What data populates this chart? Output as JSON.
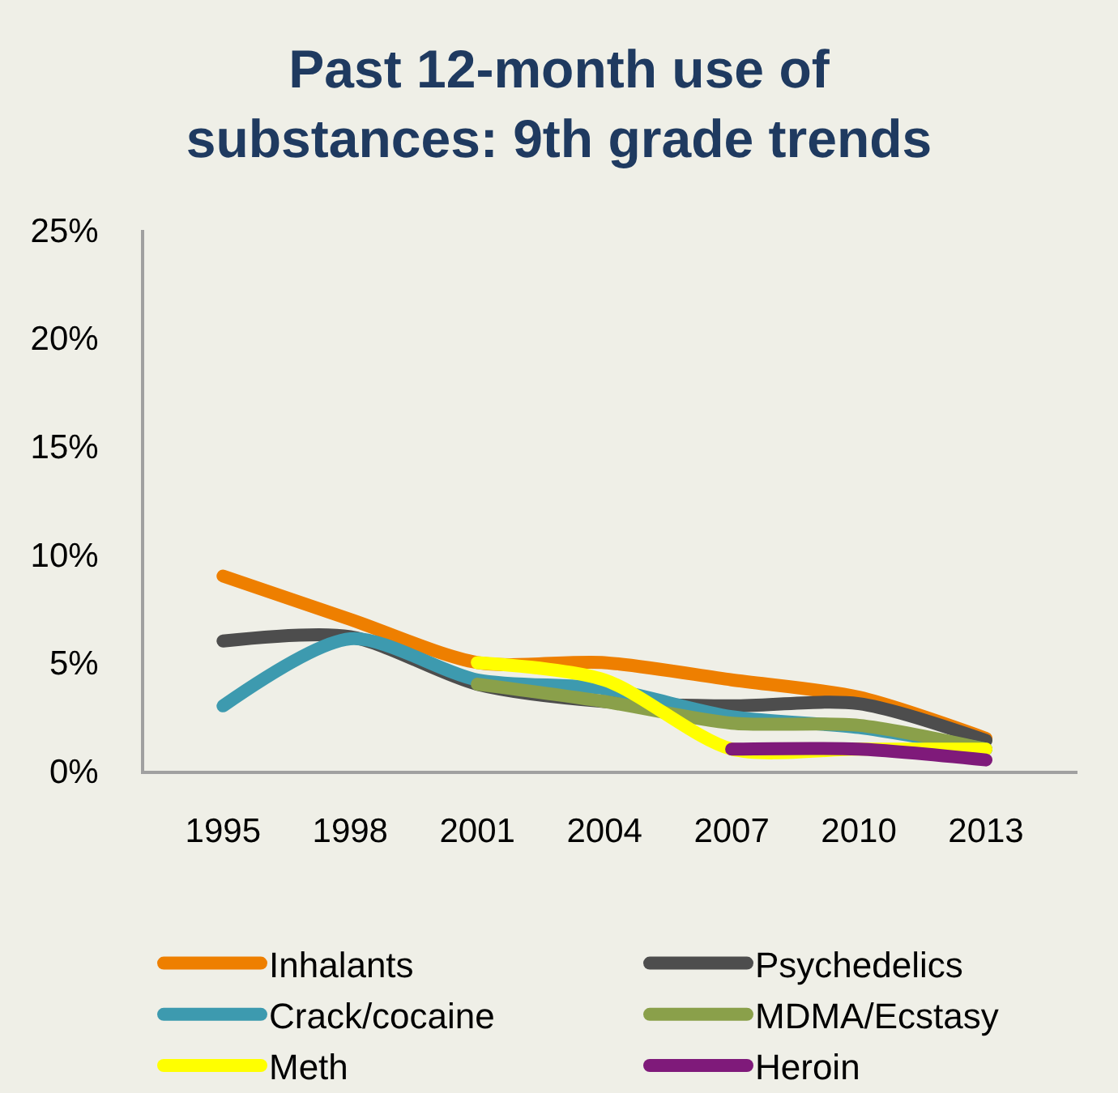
{
  "chart_data": {
    "type": "line",
    "title": "Past 12-month use of\nsubstances: 9th grade trends",
    "categories": [
      "1995",
      "1998",
      "2001",
      "2004",
      "2007",
      "2010",
      "2013"
    ],
    "series": [
      {
        "name": "Inhalants",
        "color": "#ee7f00",
        "values": [
          9,
          7,
          5,
          5,
          4.2,
          3.4,
          1.5
        ]
      },
      {
        "name": "Psychedelics",
        "color": "#4d4d4d",
        "values": [
          6,
          6.2,
          4,
          3.2,
          3,
          3.1,
          1.4
        ]
      },
      {
        "name": "Crack/cocaine",
        "color": "#3d9aaf",
        "values": [
          3,
          6.1,
          4.2,
          3.8,
          2.5,
          2,
          1
        ]
      },
      {
        "name": "MDMA/Ecstasy",
        "color": "#8aa04a",
        "values": [
          null,
          null,
          4,
          3.2,
          2.2,
          2.1,
          1
        ]
      },
      {
        "name": "Meth",
        "color": "#ffff00",
        "values": [
          null,
          null,
          5,
          4.2,
          1,
          1,
          1
        ]
      },
      {
        "name": "Heroin",
        "color": "#7f1a7a",
        "values": [
          null,
          null,
          null,
          null,
          1,
          1,
          0.5
        ]
      }
    ],
    "ylim": [
      0,
      25
    ],
    "yticks": [
      {
        "value": 0,
        "label": "0%"
      },
      {
        "value": 5,
        "label": "5%"
      },
      {
        "value": 10,
        "label": "10%"
      },
      {
        "value": 15,
        "label": "15%"
      },
      {
        "value": 20,
        "label": "20%"
      },
      {
        "value": 25,
        "label": "25%"
      }
    ],
    "legend": "bottom"
  }
}
